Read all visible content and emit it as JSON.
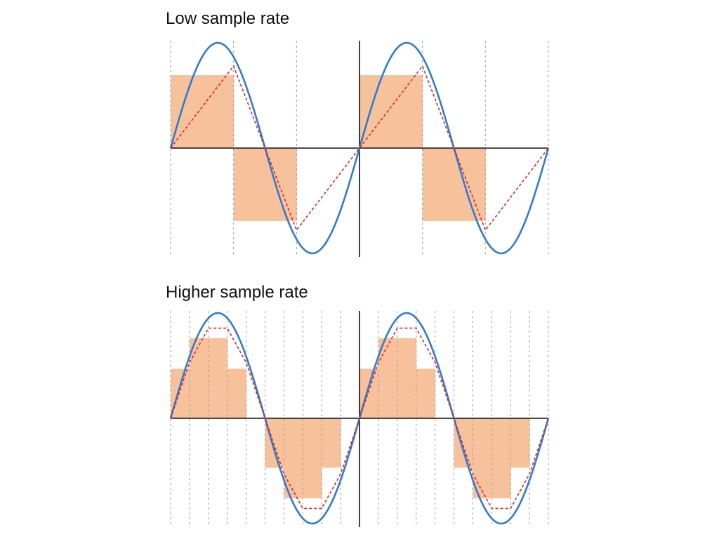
{
  "panels": [
    {
      "title": "Low sample rate",
      "samples_per_cycle": 3
    },
    {
      "title": "Higher sample rate",
      "samples_per_cycle": 10
    }
  ],
  "cycles": 2,
  "colors": {
    "sine": "#2f7bd1",
    "samples": "#f7c29b",
    "reconstruction": "#e02020",
    "axis": "#111111",
    "gridline": "#9a9a9a"
  }
}
